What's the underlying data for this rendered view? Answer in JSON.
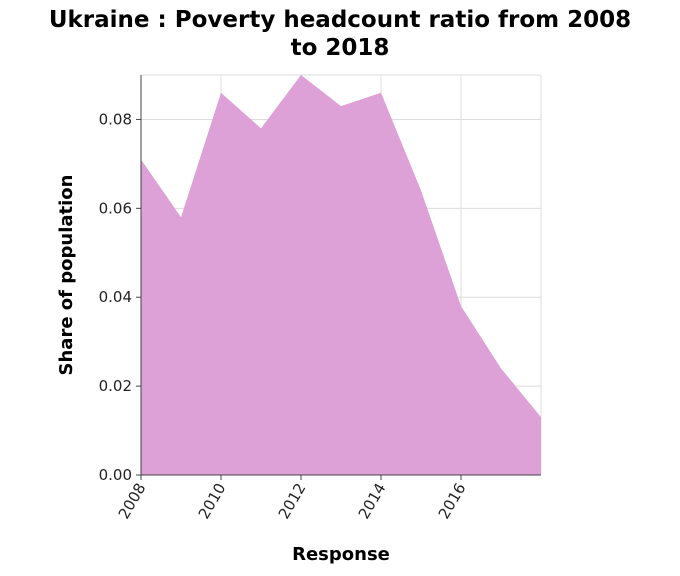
{
  "chart_data": {
    "type": "area",
    "title_line1": "Ukraine : Poverty headcount ratio from 2008",
    "title_line2": "to 2018",
    "xlabel": "Response",
    "ylabel": "Share of population",
    "x": [
      2008,
      2009,
      2010,
      2011,
      2012,
      2013,
      2014,
      2015,
      2016,
      2017,
      2018
    ],
    "values": [
      0.071,
      0.058,
      0.086,
      0.078,
      0.09,
      0.083,
      0.086,
      0.064,
      0.038,
      0.024,
      0.013
    ],
    "xlim": [
      2008,
      2018
    ],
    "ylim": [
      0,
      0.09
    ],
    "x_ticks": [
      "2008",
      "2010",
      "2012",
      "2014",
      "2016"
    ],
    "y_ticks": [
      "0.00",
      "0.02",
      "0.04",
      "0.06",
      "0.08"
    ],
    "grid": true,
    "fill_color": "#dda0d7"
  }
}
